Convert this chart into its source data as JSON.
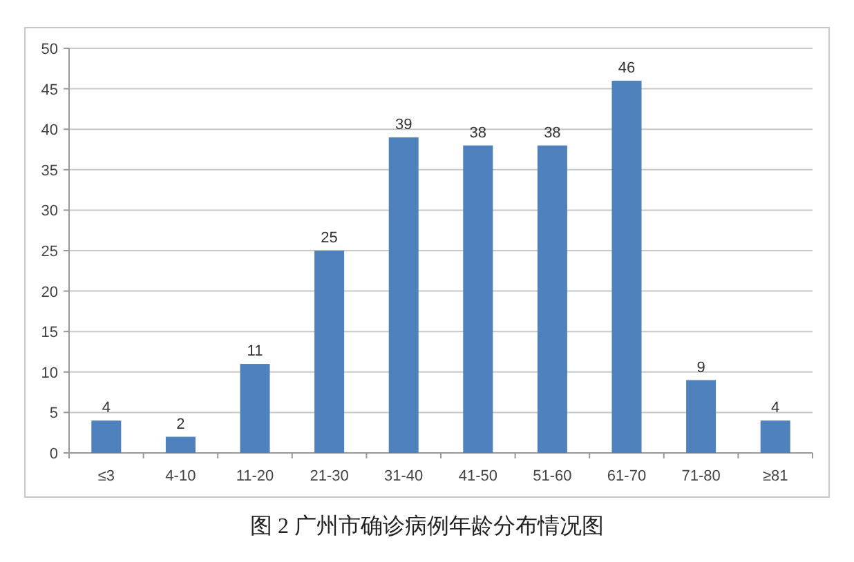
{
  "chart_data": {
    "type": "bar",
    "title": "图 2 广州市确诊病例年龄分布情况图",
    "categories": [
      "≤3",
      "4-10",
      "11-20",
      "21-30",
      "31-40",
      "41-50",
      "51-60",
      "61-70",
      "71-80",
      "≥81"
    ],
    "values": [
      4,
      2,
      11,
      25,
      39,
      38,
      38,
      46,
      9,
      4
    ],
    "color": "#4f81bd",
    "ylim": [
      0,
      50
    ],
    "yticks": [
      0,
      5,
      10,
      15,
      20,
      25,
      30,
      35,
      40,
      45,
      50
    ],
    "grid": "y",
    "data_labels": true
  }
}
